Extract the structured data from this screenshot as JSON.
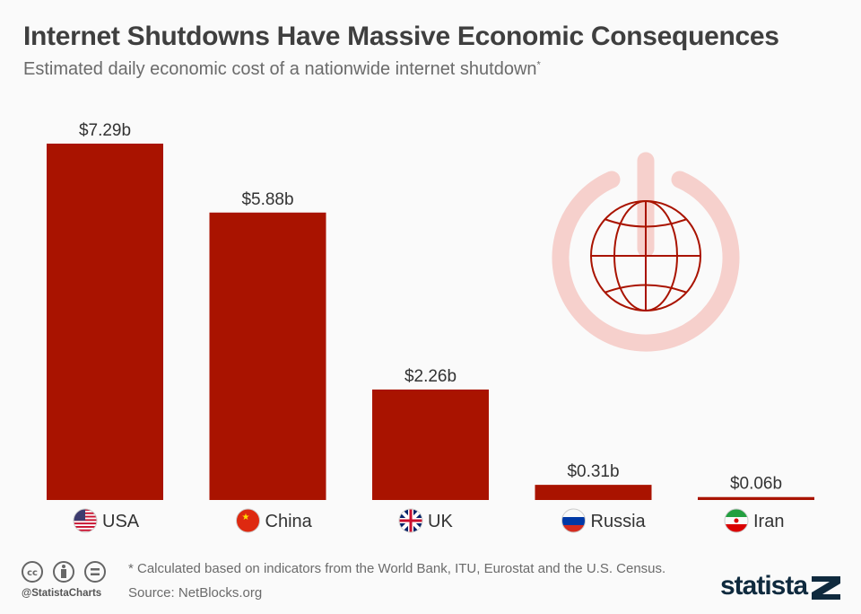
{
  "title": "Internet Shutdowns Have Massive Economic Consequences",
  "subtitle": "Estimated daily economic cost of a nationwide internet shutdown",
  "subtitle_mark": "*",
  "chart_data": {
    "type": "bar",
    "categories": [
      "USA",
      "China",
      "UK",
      "Russia",
      "Iran"
    ],
    "values": [
      7.29,
      5.88,
      2.26,
      0.31,
      0.06
    ],
    "labels": [
      "$7.29b",
      "$5.88b",
      "$2.26b",
      "$0.31b",
      "$0.06b"
    ],
    "unit": "billion USD",
    "ylim": [
      0,
      7.29
    ],
    "grid": false,
    "bar_color": "#a91300",
    "flags": [
      "flag-usa-icon",
      "flag-china-icon",
      "flag-uk-icon",
      "flag-russia-icon",
      "flag-iran-icon"
    ]
  },
  "illustration": {
    "icon": "power-globe-icon",
    "ring_color": "#f6d0cc",
    "globe_color": "#a91300"
  },
  "footer": {
    "note": "* Calculated based on indicators from the World Bank, ITU, Eurostat and the U.S. Census.",
    "source": "Source: NetBlocks.org",
    "handle": "@StatistaCharts",
    "license_icons": [
      "cc-icon",
      "attribution-icon",
      "no-derivatives-icon"
    ],
    "logo": "statista"
  }
}
